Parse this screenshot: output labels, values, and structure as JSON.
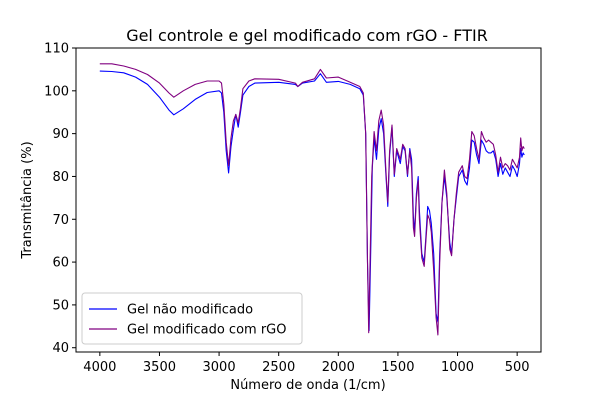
{
  "chart_data": {
    "type": "line",
    "title": "Gel controle e gel modificado com rGO - FTIR",
    "xlabel": "Número de onda (1/cm)",
    "ylabel": "Transmitância (%)",
    "xlim": [
      4200,
      300
    ],
    "ylim": [
      39,
      110
    ],
    "x_reversed": true,
    "xticks": [
      4000,
      3500,
      3000,
      2500,
      2000,
      1500,
      1000,
      500
    ],
    "xtick_labels": [
      "4000",
      "3500",
      "3000",
      "2500",
      "2000",
      "1500",
      "1000",
      "500"
    ],
    "yticks": [
      40,
      50,
      60,
      70,
      80,
      90,
      100,
      110
    ],
    "ytick_labels": [
      "40",
      "50",
      "60",
      "70",
      "80",
      "90",
      "100",
      "110"
    ],
    "grid": false,
    "legend_position": "lower-left",
    "series": [
      {
        "name": "Gel não modificado",
        "color": "#0000ff",
        "points": [
          [
            4000,
            104.6
          ],
          [
            3900,
            104.5
          ],
          [
            3800,
            104.2
          ],
          [
            3700,
            103.2
          ],
          [
            3600,
            101.5
          ],
          [
            3500,
            98.5
          ],
          [
            3420,
            95.5
          ],
          [
            3380,
            94.4
          ],
          [
            3300,
            95.8
          ],
          [
            3200,
            98.0
          ],
          [
            3100,
            99.6
          ],
          [
            3000,
            100.0
          ],
          [
            2980,
            99.5
          ],
          [
            2960,
            95.0
          ],
          [
            2940,
            86.0
          ],
          [
            2920,
            80.8
          ],
          [
            2900,
            87.0
          ],
          [
            2880,
            91.0
          ],
          [
            2860,
            94.5
          ],
          [
            2840,
            91.5
          ],
          [
            2820,
            95.0
          ],
          [
            2800,
            99.0
          ],
          [
            2750,
            101.0
          ],
          [
            2700,
            101.8
          ],
          [
            2500,
            102.0
          ],
          [
            2360,
            101.5
          ],
          [
            2340,
            101.0
          ],
          [
            2300,
            101.8
          ],
          [
            2200,
            102.3
          ],
          [
            2150,
            104.0
          ],
          [
            2100,
            102.0
          ],
          [
            2000,
            102.2
          ],
          [
            1900,
            101.5
          ],
          [
            1820,
            100.5
          ],
          [
            1790,
            99.0
          ],
          [
            1770,
            90.0
          ],
          [
            1755,
            60.0
          ],
          [
            1742,
            44.0
          ],
          [
            1730,
            60.0
          ],
          [
            1715,
            82.0
          ],
          [
            1700,
            89.0
          ],
          [
            1680,
            84.0
          ],
          [
            1660,
            91.0
          ],
          [
            1640,
            93.5
          ],
          [
            1620,
            90.0
          ],
          [
            1600,
            80.0
          ],
          [
            1585,
            73.0
          ],
          [
            1570,
            85.0
          ],
          [
            1550,
            91.5
          ],
          [
            1530,
            80.0
          ],
          [
            1510,
            86.0
          ],
          [
            1480,
            83.0
          ],
          [
            1460,
            87.0
          ],
          [
            1440,
            86.0
          ],
          [
            1420,
            80.0
          ],
          [
            1400,
            86.5
          ],
          [
            1385,
            84.0
          ],
          [
            1370,
            70.5
          ],
          [
            1360,
            67.0
          ],
          [
            1345,
            76.0
          ],
          [
            1330,
            80.0
          ],
          [
            1320,
            72.0
          ],
          [
            1300,
            62.0
          ],
          [
            1280,
            60.0
          ],
          [
            1265,
            66.0
          ],
          [
            1250,
            73.0
          ],
          [
            1235,
            72.0
          ],
          [
            1220,
            69.0
          ],
          [
            1200,
            62.0
          ],
          [
            1180,
            48.0
          ],
          [
            1165,
            46.0
          ],
          [
            1150,
            62.0
          ],
          [
            1130,
            74.0
          ],
          [
            1110,
            80.0
          ],
          [
            1090,
            75.0
          ],
          [
            1065,
            64.5
          ],
          [
            1050,
            62.0
          ],
          [
            1030,
            70.0
          ],
          [
            1010,
            75.0
          ],
          [
            990,
            80.0
          ],
          [
            960,
            81.5
          ],
          [
            940,
            79.0
          ],
          [
            920,
            78.0
          ],
          [
            900,
            82.0
          ],
          [
            880,
            88.5
          ],
          [
            860,
            88.0
          ],
          [
            840,
            85.0
          ],
          [
            820,
            83.0
          ],
          [
            800,
            88.5
          ],
          [
            780,
            87.5
          ],
          [
            760,
            86.0
          ],
          [
            740,
            85.5
          ],
          [
            720,
            85.5
          ],
          [
            700,
            86.0
          ],
          [
            680,
            84.0
          ],
          [
            660,
            80.0
          ],
          [
            640,
            83.0
          ],
          [
            620,
            80.5
          ],
          [
            600,
            82.0
          ],
          [
            580,
            81.0
          ],
          [
            560,
            80.0
          ],
          [
            540,
            82.5
          ],
          [
            520,
            81.5
          ],
          [
            500,
            80.0
          ],
          [
            480,
            83.0
          ],
          [
            470,
            86.5
          ],
          [
            460,
            84.5
          ],
          [
            450,
            85.5
          ],
          [
            440,
            85.0
          ]
        ]
      },
      {
        "name": "Gel modificado com rGO",
        "color": "#800080",
        "points": [
          [
            4000,
            106.3
          ],
          [
            3900,
            106.3
          ],
          [
            3800,
            105.8
          ],
          [
            3700,
            105.0
          ],
          [
            3600,
            103.8
          ],
          [
            3500,
            101.8
          ],
          [
            3420,
            99.5
          ],
          [
            3380,
            98.5
          ],
          [
            3300,
            100.0
          ],
          [
            3200,
            101.5
          ],
          [
            3100,
            102.3
          ],
          [
            3000,
            102.3
          ],
          [
            2980,
            101.8
          ],
          [
            2960,
            97.0
          ],
          [
            2940,
            88.0
          ],
          [
            2920,
            82.5
          ],
          [
            2900,
            89.0
          ],
          [
            2880,
            93.0
          ],
          [
            2860,
            94.5
          ],
          [
            2840,
            92.5
          ],
          [
            2820,
            96.0
          ],
          [
            2800,
            100.5
          ],
          [
            2750,
            102.3
          ],
          [
            2700,
            102.8
          ],
          [
            2500,
            102.7
          ],
          [
            2360,
            101.8
          ],
          [
            2340,
            101.0
          ],
          [
            2300,
            102.0
          ],
          [
            2200,
            102.8
          ],
          [
            2150,
            105.0
          ],
          [
            2100,
            103.0
          ],
          [
            2000,
            103.2
          ],
          [
            1900,
            102.0
          ],
          [
            1820,
            101.0
          ],
          [
            1790,
            99.5
          ],
          [
            1770,
            90.0
          ],
          [
            1755,
            60.0
          ],
          [
            1745,
            43.5
          ],
          [
            1735,
            58.0
          ],
          [
            1720,
            80.0
          ],
          [
            1700,
            90.5
          ],
          [
            1680,
            86.0
          ],
          [
            1660,
            93.0
          ],
          [
            1640,
            95.5
          ],
          [
            1620,
            92.0
          ],
          [
            1600,
            81.0
          ],
          [
            1585,
            74.0
          ],
          [
            1570,
            86.0
          ],
          [
            1550,
            92.0
          ],
          [
            1530,
            80.5
          ],
          [
            1510,
            86.5
          ],
          [
            1480,
            84.0
          ],
          [
            1460,
            87.5
          ],
          [
            1440,
            86.5
          ],
          [
            1420,
            80.5
          ],
          [
            1400,
            86.0
          ],
          [
            1385,
            82.0
          ],
          [
            1370,
            68.0
          ],
          [
            1360,
            66.0
          ],
          [
            1345,
            75.0
          ],
          [
            1330,
            79.0
          ],
          [
            1320,
            70.0
          ],
          [
            1300,
            61.0
          ],
          [
            1280,
            59.0
          ],
          [
            1265,
            65.0
          ],
          [
            1250,
            71.0
          ],
          [
            1235,
            70.0
          ],
          [
            1220,
            67.0
          ],
          [
            1200,
            58.0
          ],
          [
            1180,
            47.0
          ],
          [
            1165,
            43.0
          ],
          [
            1150,
            60.0
          ],
          [
            1130,
            74.0
          ],
          [
            1110,
            81.5
          ],
          [
            1090,
            76.0
          ],
          [
            1065,
            63.0
          ],
          [
            1050,
            61.5
          ],
          [
            1030,
            70.0
          ],
          [
            1010,
            76.0
          ],
          [
            990,
            81.0
          ],
          [
            960,
            82.5
          ],
          [
            940,
            80.0
          ],
          [
            920,
            79.5
          ],
          [
            900,
            84.0
          ],
          [
            880,
            90.5
          ],
          [
            860,
            89.5
          ],
          [
            840,
            86.5
          ],
          [
            820,
            84.0
          ],
          [
            800,
            90.5
          ],
          [
            780,
            89.0
          ],
          [
            760,
            88.0
          ],
          [
            740,
            88.5
          ],
          [
            720,
            88.0
          ],
          [
            700,
            87.5
          ],
          [
            680,
            85.0
          ],
          [
            660,
            81.0
          ],
          [
            640,
            84.5
          ],
          [
            620,
            82.0
          ],
          [
            600,
            83.0
          ],
          [
            580,
            82.5
          ],
          [
            560,
            81.5
          ],
          [
            540,
            84.0
          ],
          [
            520,
            83.0
          ],
          [
            500,
            82.0
          ],
          [
            480,
            84.5
          ],
          [
            470,
            89.0
          ],
          [
            460,
            86.0
          ],
          [
            450,
            87.0
          ],
          [
            440,
            86.5
          ]
        ]
      }
    ]
  }
}
